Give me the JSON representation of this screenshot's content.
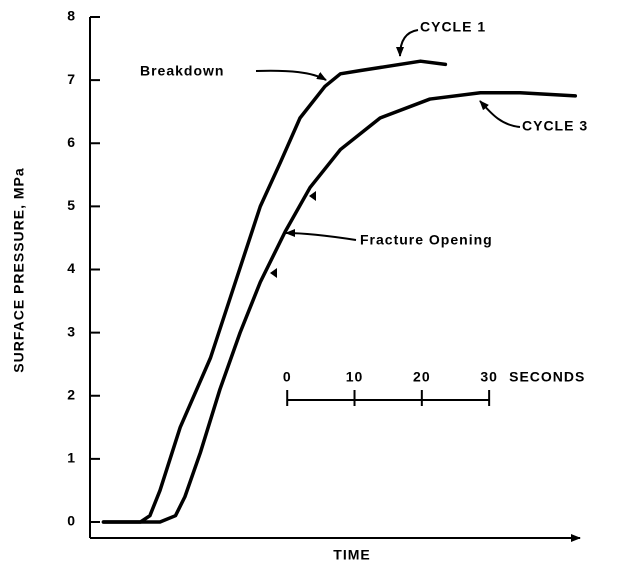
{
  "chart_data": {
    "type": "line",
    "xlabel": "TIME",
    "ylabel": "SURFACE PRESSURE, MPa",
    "xlim": [
      -29.3,
      43.5
    ],
    "ylim": [
      0,
      8
    ],
    "yticks": [
      0,
      1,
      2,
      3,
      4,
      5,
      6,
      7,
      8
    ],
    "series": [
      {
        "name": "CYCLE 1",
        "color": "#000000",
        "x": [
          -27.3,
          -21.8,
          -20.4,
          -18.9,
          -15.9,
          -11.4,
          -7.7,
          -4.0,
          -1.0,
          1.9,
          5.6,
          7.9,
          10.8,
          13.8,
          19.8,
          23.5
        ],
        "values": [
          0,
          0,
          0.1,
          0.5,
          1.5,
          2.6,
          3.8,
          5.0,
          5.7,
          6.4,
          6.9,
          7.1,
          7.15,
          7.2,
          7.3,
          7.25
        ]
      },
      {
        "name": "CYCLE 3",
        "color": "#000000",
        "x": [
          -27.3,
          -18.9,
          -16.6,
          -15.2,
          -12.9,
          -10.0,
          -7.0,
          -4.0,
          -0.3,
          3.4,
          7.9,
          13.8,
          21.2,
          28.7,
          34.6,
          42.8
        ],
        "values": [
          0,
          0,
          0.1,
          0.4,
          1.1,
          2.1,
          3.0,
          3.8,
          4.6,
          5.3,
          5.9,
          6.4,
          6.7,
          6.8,
          6.8,
          6.75
        ]
      }
    ],
    "annotations": [
      "Breakdown",
      "Fracture Opening"
    ],
    "scale_bar": {
      "ticks": [
        0,
        10,
        20,
        30
      ],
      "label": "SECONDS"
    }
  }
}
